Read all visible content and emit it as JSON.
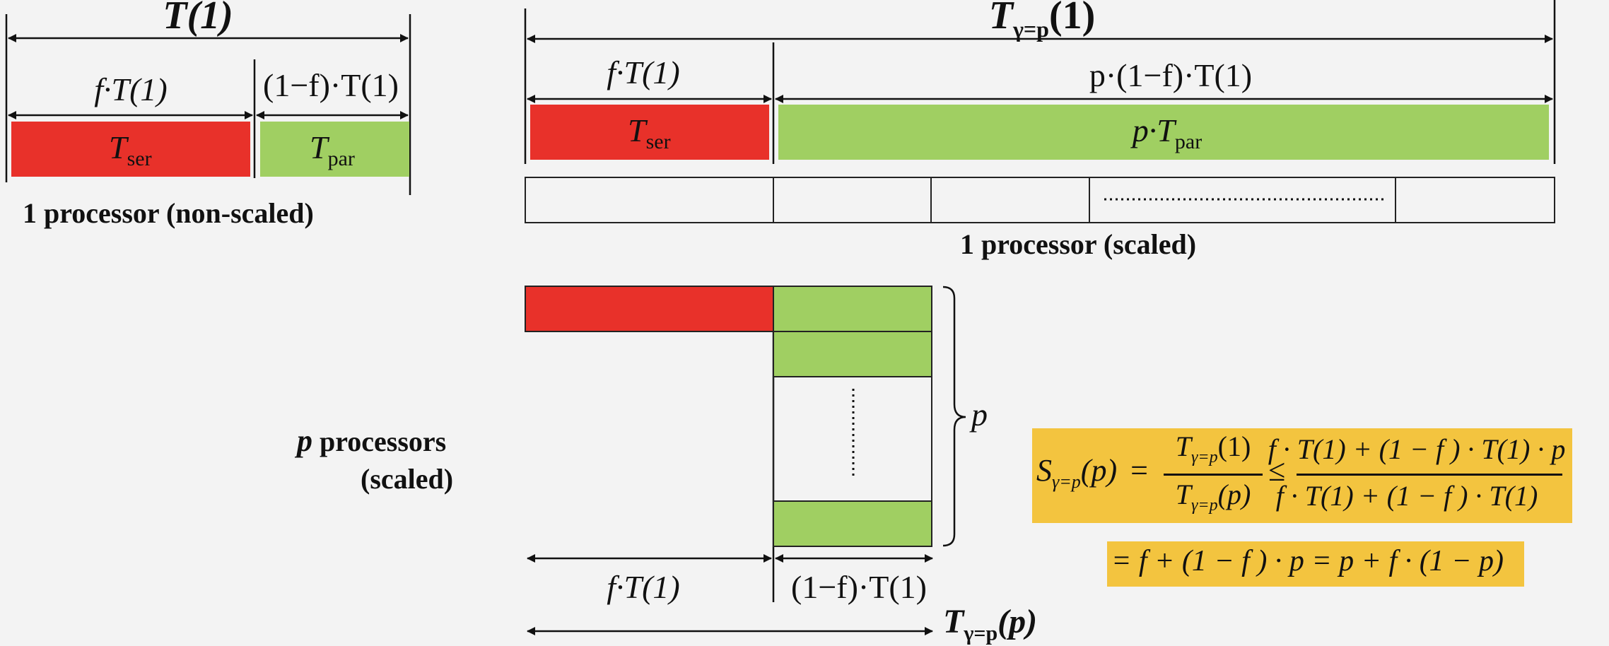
{
  "left_panel": {
    "title": "T(1)",
    "serial_span": "f·T(1)",
    "parallel_span": "(1−f)·T(1)",
    "serial_block": {
      "main": "T",
      "sub": "ser"
    },
    "parallel_block": {
      "main": "T",
      "sub": "par"
    },
    "caption": "1 processor (non-scaled)"
  },
  "right_panel": {
    "title": {
      "main": "T",
      "sub": "γ=p",
      "arg": "(1)"
    },
    "serial_span": "f·T(1)",
    "parallel_span": "p·(1−f)·T(1)",
    "serial_block": {
      "main": "T",
      "sub": "ser"
    },
    "parallel_block": {
      "prefix": "p·",
      "main": "T",
      "sub": "par"
    },
    "caption": "1 processor (scaled)"
  },
  "bottom_panel": {
    "caption_line1": "p processors",
    "caption_p": "p",
    "caption_rest": " processors",
    "caption_line2": "(scaled)",
    "brace_label": "p",
    "serial_span": "f·T(1)",
    "parallel_span": "(1−f)·T(1)",
    "total": {
      "main": "T",
      "sub": "γ=p",
      "arg": "(p)"
    }
  },
  "formula": {
    "lhs": {
      "main": "S",
      "sub": "γ=p",
      "arg": "(p)"
    },
    "eq": "=",
    "frac1_num": {
      "main": "T",
      "sub": "γ=p",
      "arg": "(1)"
    },
    "frac1_den": {
      "main": "T",
      "sub": "γ=p",
      "arg": "(p)"
    },
    "leq": "≤",
    "frac2_num": "f · T(1) + (1 − f ) · T(1) · p",
    "frac2_den": "f · T(1) + (1 − f ) · T(1)",
    "line2": "= f + (1 − f ) · p = p + f · (1 − p)"
  },
  "colors": {
    "serial": "#e8312a",
    "parallel": "#a0cf62",
    "formula_bg": "#f3c43f"
  }
}
